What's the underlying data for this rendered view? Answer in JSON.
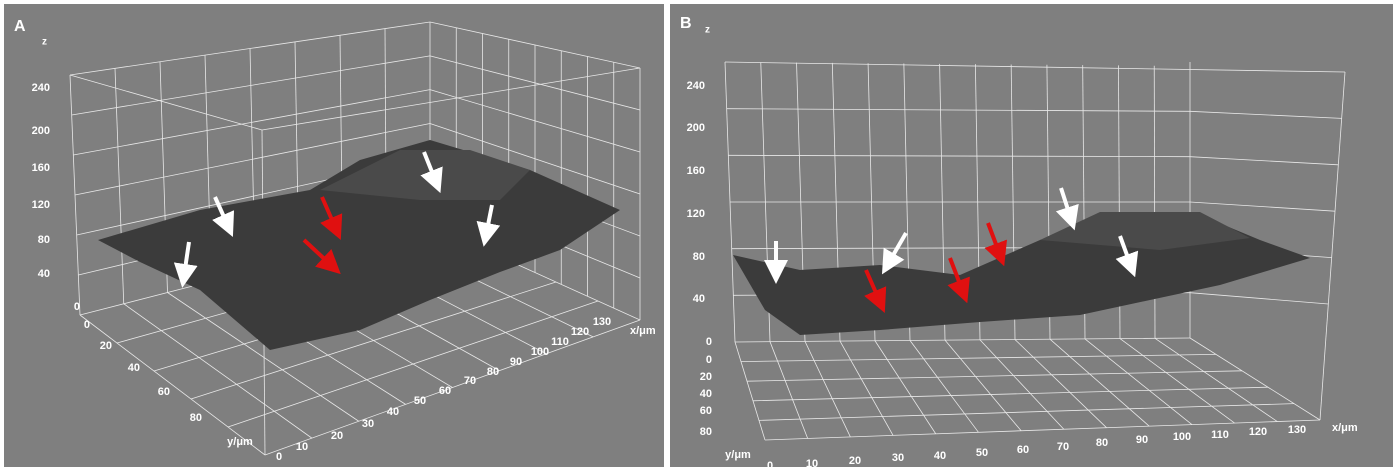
{
  "panels": [
    {
      "label": "A",
      "z_label": "z",
      "x_label": "x/μm",
      "y_label": "y/μm",
      "z_ticks": [
        "240",
        "200",
        "160",
        "120",
        "80",
        "40",
        "0"
      ],
      "y_ticks": [
        "0",
        "20",
        "40",
        "60",
        "80"
      ],
      "x_ticks": [
        "0",
        "10",
        "20",
        "30",
        "40",
        "50",
        "60",
        "70",
        "80",
        "90",
        "100",
        "110",
        "120",
        "130"
      ]
    },
    {
      "label": "B",
      "z_label": "z",
      "x_label": "x/μm",
      "y_label": "y/μm",
      "z_ticks": [
        "240",
        "200",
        "160",
        "120",
        "80",
        "40",
        "0"
      ],
      "y_ticks": [
        "0",
        "20",
        "40",
        "60",
        "80"
      ],
      "x_ticks": [
        "0",
        "10",
        "20",
        "30",
        "40",
        "50",
        "60",
        "70",
        "80",
        "90",
        "100",
        "110",
        "120",
        "130"
      ]
    }
  ]
}
